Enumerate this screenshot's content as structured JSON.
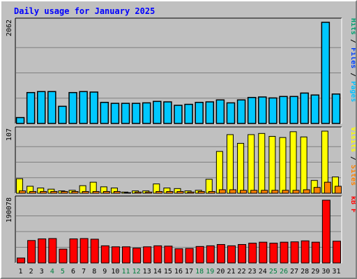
{
  "chart_data": {
    "type": "bar",
    "title": "Daily usage for January 2025",
    "categories": [
      "1",
      "2",
      "3",
      "4",
      "5",
      "6",
      "7",
      "8",
      "9",
      "10",
      "11",
      "12",
      "13",
      "14",
      "15",
      "16",
      "17",
      "18",
      "19",
      "20",
      "21",
      "22",
      "23",
      "24",
      "25",
      "26",
      "27",
      "28",
      "29",
      "30",
      "31"
    ],
    "weekend_days": [
      "4",
      "5",
      "11",
      "12",
      "18",
      "19",
      "25",
      "26"
    ],
    "panels": [
      {
        "id": "hits",
        "ymax_label": "2062",
        "ylim": [
          0,
          2062
        ],
        "legend": [
          {
            "text": "Pages",
            "color": "#00c0ff"
          },
          {
            "text": "Files",
            "color": "#0040ff"
          },
          {
            "text": "Hits",
            "color": "#00a070"
          }
        ],
        "series": [
          {
            "name": "Hits",
            "color": "#008080",
            "values": [
              120,
              630,
              650,
              650,
              350,
              630,
              650,
              640,
              430,
              410,
              410,
              410,
              420,
              450,
              440,
              370,
              390,
              430,
              440,
              480,
              420,
              480,
              530,
              540,
              520,
              550,
              550,
              620,
              580,
              2062,
              600
            ]
          },
          {
            "name": "Files",
            "color": "#00c0ff",
            "values": [
              120,
              630,
              650,
              650,
              350,
              630,
              650,
              640,
              430,
              410,
              410,
              410,
              420,
              450,
              440,
              370,
              390,
              430,
              440,
              480,
              420,
              480,
              530,
              540,
              520,
              550,
              550,
              620,
              580,
              2062,
              600
            ]
          },
          {
            "name": "Pages",
            "color": "#00c0ff",
            "values": [
              0,
              0,
              0,
              0,
              0,
              0,
              0,
              0,
              0,
              0,
              0,
              0,
              0,
              0,
              0,
              0,
              0,
              0,
              0,
              0,
              0,
              0,
              0,
              0,
              0,
              0,
              0,
              0,
              0,
              0,
              0
            ]
          }
        ]
      },
      {
        "id": "visits",
        "ymax_label": "107",
        "ylim": [
          0,
          107
        ],
        "legend": [
          {
            "text": "Sites",
            "color": "#ff8000"
          },
          {
            "text": "Visits",
            "color": "#ffff00"
          }
        ],
        "series": [
          {
            "name": "Visits",
            "color": "#ffff00",
            "values": [
              25,
              12,
              9,
              7,
              4,
              5,
              13,
              19,
              11,
              9,
              2,
              4,
              4,
              16,
              9,
              8,
              4,
              5,
              24,
              72,
              101,
              86,
              101,
              103,
              98,
              96,
              106,
              97,
              22,
              107,
              28
            ]
          },
          {
            "name": "Sites",
            "color": "#ff8000",
            "values": [
              4,
              3,
              3,
              3,
              3,
              3,
              3,
              3,
              3,
              3,
              1,
              2,
              2,
              3,
              3,
              3,
              2,
              3,
              3,
              6,
              6,
              5,
              5,
              5,
              5,
              5,
              5,
              6,
              10,
              19,
              12
            ]
          }
        ]
      },
      {
        "id": "kbytes",
        "ymax_label": "190078",
        "ylim": [
          0,
          190078
        ],
        "legend": [
          {
            "text": "kB F",
            "color": "#ff0000"
          }
        ],
        "series": [
          {
            "name": "kB F",
            "color": "#ff0000",
            "values": [
              15000,
              68000,
              73000,
              74000,
              42000,
              73000,
              74000,
              72000,
              52000,
              49000,
              49000,
              45000,
              49000,
              52000,
              51000,
              43000,
              44000,
              50000,
              52000,
              56000,
              52000,
              56000,
              60000,
              63000,
              60000,
              63000,
              64000,
              67000,
              63000,
              190078,
              66000
            ]
          }
        ]
      }
    ]
  }
}
